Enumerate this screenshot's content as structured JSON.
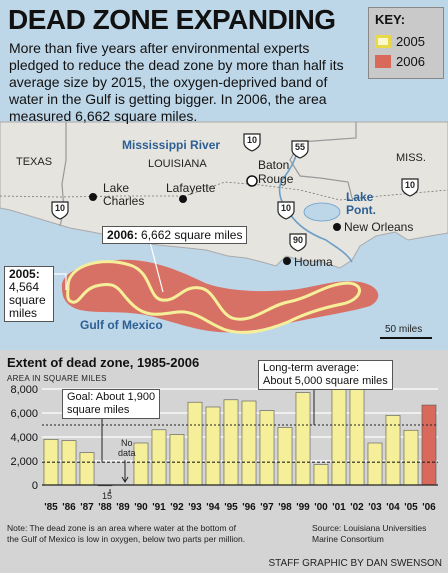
{
  "header": {
    "title": "DEAD ZONE EXPANDING",
    "intro": "More than five years after environmental experts pledged to reduce the dead zone by more than half its average size by 2015, the oxygen-deprived band of water in the Gulf is getting bigger. In 2006, the area measured 6,662 square miles."
  },
  "key": {
    "title": "KEY:",
    "items": [
      {
        "label": "2005",
        "color": "#f6ef9a",
        "border": "#e8d94a"
      },
      {
        "label": "2006",
        "color": "#d9695a",
        "border": "#c9574a"
      }
    ]
  },
  "map": {
    "states": {
      "texas": "TEXAS",
      "louisiana": "LOUISIANA",
      "miss": "MISS."
    },
    "river": "Mississippi River",
    "gulf": "Gulf of Mexico",
    "cities": {
      "lake_charles": "Lake\nCharles",
      "lafayette": "Lafayette",
      "baton_rouge": "Baton\nRouge",
      "new_orleans": "New Orleans",
      "houma": "Houma",
      "lake_pont": "Lake\nPont."
    },
    "highways": {
      "h10a": "10",
      "h10b": "10",
      "h10c": "10",
      "h10d": "10",
      "h55": "55",
      "h90": "90"
    },
    "callout_2006_year": "2006:",
    "callout_2006_text": "6,662 square miles",
    "callout_2005_year": "2005:",
    "callout_2005_text": "4,564\nsquare\nmiles",
    "scale": "50 miles"
  },
  "chart": {
    "title": "Extent of dead zone, 1985-2006",
    "unit": "AREA IN SQUARE MILES",
    "goal": "Goal: About 1,900\nsquare miles",
    "average": "Long-term average:\nAbout 5,000 square miles",
    "no_data": "No\ndata",
    "bar_label_1988": "15",
    "note": "Note: The dead zone is an area where water at the bottom of\nthe Gulf of Mexico is low in oxygen, below two parts per million.",
    "source": "Source: Louisiana Universities\nMarine Consortium"
  },
  "credit": "STAFF GRAPHIC BY DAN SWENSON",
  "chart_data": {
    "type": "bar",
    "categories": [
      "'85",
      "'86",
      "'87",
      "'88",
      "'89",
      "'90",
      "'91",
      "'92",
      "'93",
      "'94",
      "'95",
      "'96",
      "'97",
      "'98",
      "'99",
      "'00",
      "'01",
      "'02",
      "'03",
      "'04",
      "'05",
      "'06"
    ],
    "values": [
      3800,
      3700,
      2700,
      15,
      null,
      3500,
      4600,
      4200,
      6900,
      6500,
      7100,
      7000,
      6200,
      4800,
      7700,
      1700,
      8000,
      8500,
      3500,
      5800,
      4564,
      6662
    ],
    "highlight_index": 21,
    "bar_color": "#f6ef9a",
    "highlight_color": "#d9695a",
    "yticks": [
      0,
      2000,
      4000,
      6000,
      8000
    ],
    "ytick_labels": [
      "0",
      "2,000",
      "4,000",
      "6,000",
      "8,000"
    ],
    "ylim": [
      0,
      9000
    ],
    "reference_lines": [
      {
        "label": "Goal: About 1,900 square miles",
        "value": 1900
      },
      {
        "label": "Long-term average: About 5,000 square miles",
        "value": 5000
      }
    ],
    "title": "Extent of dead zone, 1985-2006",
    "xlabel": "",
    "ylabel": "AREA IN SQUARE MILES"
  }
}
